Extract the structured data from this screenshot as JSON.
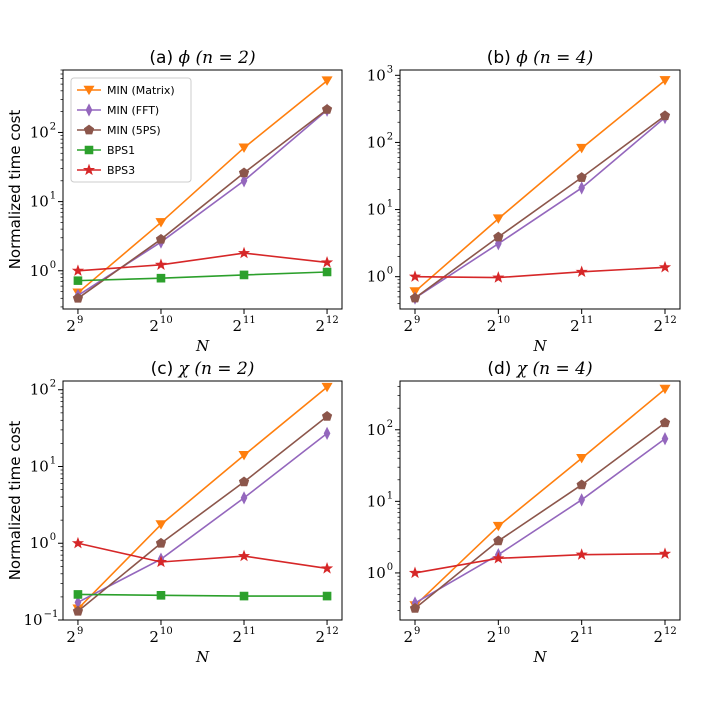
{
  "legend": [
    {
      "name": "MIN (Matrix)",
      "color": "#ff7f0e",
      "marker": "triangle-down"
    },
    {
      "name": "MIN (FFT)",
      "color": "#9467bd",
      "marker": "thin-diamond"
    },
    {
      "name": "MIN (5PS)",
      "color": "#8c564b",
      "marker": "pentagon"
    },
    {
      "name": "BPS1",
      "color": "#2ca02c",
      "marker": "square"
    },
    {
      "name": "BPS3",
      "color": "#d62728",
      "marker": "star"
    }
  ],
  "chart_data": [
    {
      "type": "line",
      "title": "(a) ϕ (n = 2)",
      "title_prefix": "(a) ",
      "title_math": "ϕ (n = 2)",
      "xlabel": "N",
      "ylabel": "Normalized time cost",
      "x": [
        9,
        10,
        11,
        12
      ],
      "x_tick_labels": [
        {
          "base": "2",
          "exp": "9"
        },
        {
          "base": "2",
          "exp": "10"
        },
        {
          "base": "2",
          "exp": "11"
        },
        {
          "base": "2",
          "exp": "12"
        }
      ],
      "y_scale": "log",
      "ylim": [
        0.28,
        800
      ],
      "y_ticks": [
        {
          "value": 1,
          "base": "10",
          "exp": "0"
        },
        {
          "value": 10,
          "base": "10",
          "exp": "1"
        },
        {
          "value": 100,
          "base": "10",
          "exp": "2"
        }
      ],
      "legend_position": "upper-left",
      "series": [
        {
          "name": "MIN (Matrix)",
          "values": [
            0.48,
            5.0,
            60,
            560
          ]
        },
        {
          "name": "MIN (FFT)",
          "values": [
            0.44,
            2.6,
            20,
            210
          ]
        },
        {
          "name": "MIN (5PS)",
          "values": [
            0.4,
            2.85,
            26,
            215
          ]
        },
        {
          "name": "BPS1",
          "values": [
            0.72,
            0.78,
            0.87,
            0.96
          ]
        },
        {
          "name": "BPS3",
          "values": [
            1.0,
            1.22,
            1.8,
            1.32
          ]
        }
      ]
    },
    {
      "type": "line",
      "title": "(b) ϕ (n = 4)",
      "title_prefix": "(b) ",
      "title_math": "ϕ (n = 4)",
      "xlabel": "N",
      "ylabel": "",
      "x": [
        9,
        10,
        11,
        12
      ],
      "x_tick_labels": [
        {
          "base": "2",
          "exp": "9"
        },
        {
          "base": "2",
          "exp": "10"
        },
        {
          "base": "2",
          "exp": "11"
        },
        {
          "base": "2",
          "exp": "12"
        }
      ],
      "y_scale": "log",
      "ylim": [
        0.33,
        1200
      ],
      "y_ticks": [
        {
          "value": 1,
          "base": "10",
          "exp": "0"
        },
        {
          "value": 10,
          "base": "10",
          "exp": "1"
        },
        {
          "value": 100,
          "base": "10",
          "exp": "2"
        },
        {
          "value": 1000,
          "base": "10",
          "exp": "3"
        }
      ],
      "series": [
        {
          "name": "MIN (Matrix)",
          "values": [
            0.6,
            7.3,
            82,
            840
          ]
        },
        {
          "name": "MIN (FFT)",
          "values": [
            0.48,
            3.1,
            21,
            235
          ]
        },
        {
          "name": "MIN (5PS)",
          "values": [
            0.48,
            3.9,
            30,
            250
          ]
        },
        {
          "name": "BPS3",
          "values": [
            1.0,
            0.97,
            1.18,
            1.38
          ]
        }
      ]
    },
    {
      "type": "line",
      "title": "(c) χ (n = 2)",
      "title_prefix": "(c) ",
      "title_math": "χ (n = 2)",
      "xlabel": "N",
      "ylabel": "Normalized time cost",
      "x": [
        9,
        10,
        11,
        12
      ],
      "x_tick_labels": [
        {
          "base": "2",
          "exp": "9"
        },
        {
          "base": "2",
          "exp": "10"
        },
        {
          "base": "2",
          "exp": "11"
        },
        {
          "base": "2",
          "exp": "12"
        }
      ],
      "y_scale": "log",
      "ylim": [
        0.1,
        130
      ],
      "y_ticks": [
        {
          "value": 0.1,
          "base": "10",
          "exp": "−1"
        },
        {
          "value": 1,
          "base": "10",
          "exp": "0"
        },
        {
          "value": 10,
          "base": "10",
          "exp": "1"
        },
        {
          "value": 100,
          "base": "10",
          "exp": "2"
        }
      ],
      "series": [
        {
          "name": "MIN (Matrix)",
          "values": [
            0.14,
            1.75,
            14,
            108
          ]
        },
        {
          "name": "MIN (FFT)",
          "values": [
            0.17,
            0.62,
            3.9,
            27
          ]
        },
        {
          "name": "MIN (5PS)",
          "values": [
            0.13,
            1.0,
            6.3,
            45
          ]
        },
        {
          "name": "BPS1",
          "values": [
            0.215,
            0.21,
            0.205,
            0.205
          ]
        },
        {
          "name": "BPS3",
          "values": [
            1.0,
            0.57,
            0.68,
            0.47
          ]
        }
      ]
    },
    {
      "type": "line",
      "title": "(d) χ (n = 4)",
      "title_prefix": "(d) ",
      "title_math": "χ (n = 4)",
      "xlabel": "N",
      "ylabel": "",
      "x": [
        9,
        10,
        11,
        12
      ],
      "x_tick_labels": [
        {
          "base": "2",
          "exp": "9"
        },
        {
          "base": "2",
          "exp": "10"
        },
        {
          "base": "2",
          "exp": "11"
        },
        {
          "base": "2",
          "exp": "12"
        }
      ],
      "y_scale": "log",
      "ylim": [
        0.22,
        480
      ],
      "y_ticks": [
        {
          "value": 1,
          "base": "10",
          "exp": "0"
        },
        {
          "value": 10,
          "base": "10",
          "exp": "1"
        },
        {
          "value": 100,
          "base": "10",
          "exp": "2"
        }
      ],
      "series": [
        {
          "name": "MIN (Matrix)",
          "values": [
            0.35,
            4.5,
            40,
            370
          ]
        },
        {
          "name": "MIN (FFT)",
          "values": [
            0.38,
            1.8,
            10.5,
            75
          ]
        },
        {
          "name": "MIN (5PS)",
          "values": [
            0.32,
            2.8,
            17,
            125
          ]
        },
        {
          "name": "BPS3",
          "values": [
            1.0,
            1.6,
            1.8,
            1.85
          ]
        }
      ]
    }
  ]
}
